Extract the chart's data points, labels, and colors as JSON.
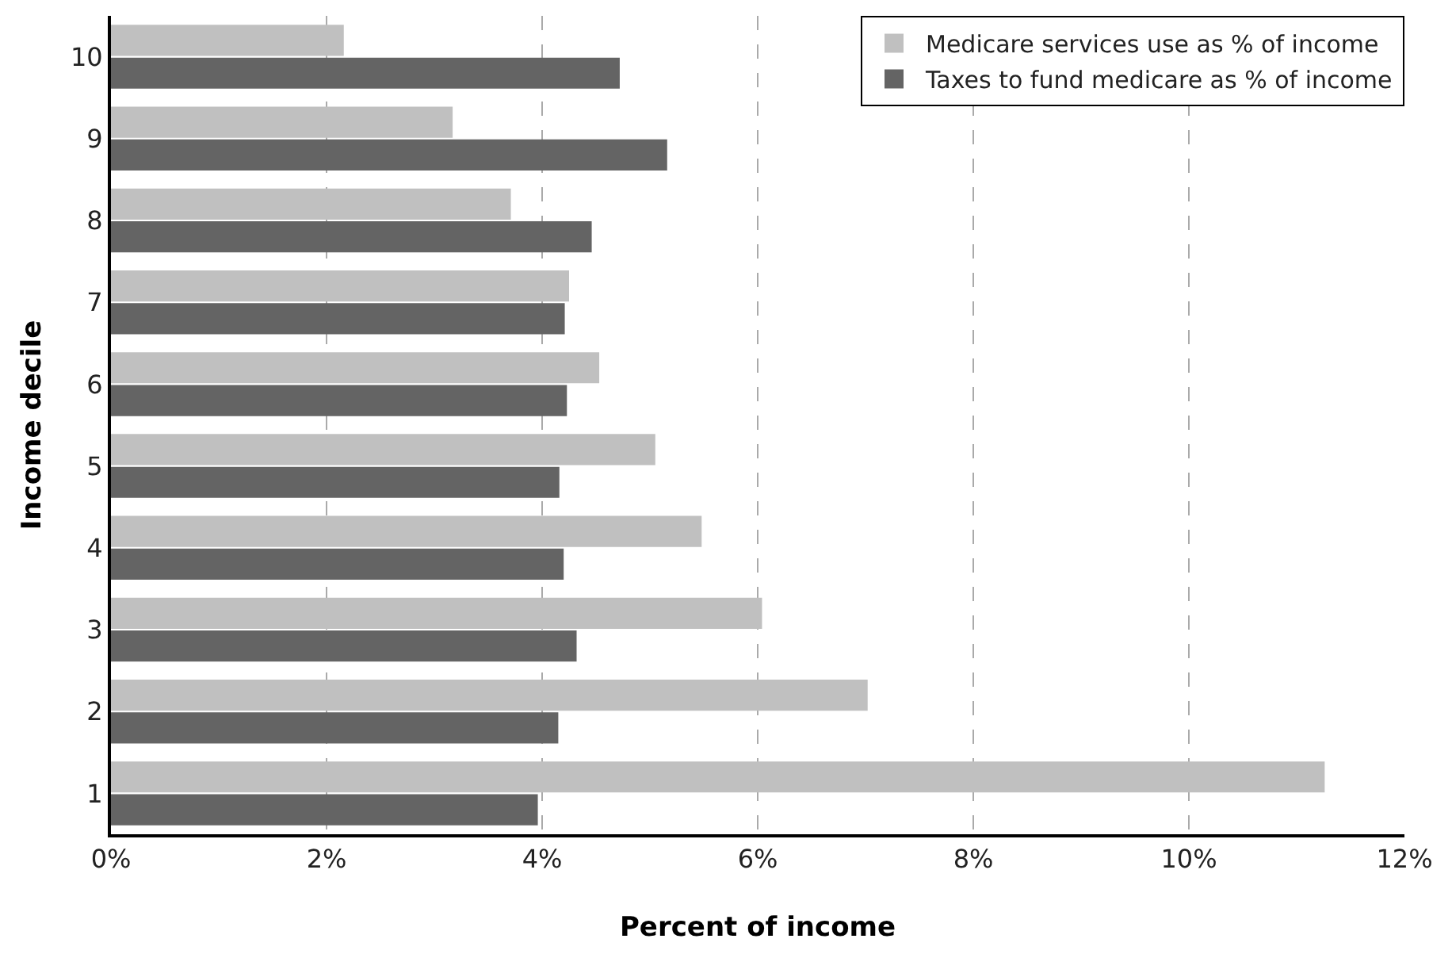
{
  "chart_data": {
    "type": "bar",
    "orientation": "horizontal",
    "xlabel": "Percent of income",
    "ylabel": "Income decile",
    "categories": [
      "10",
      "9",
      "8",
      "7",
      "6",
      "5",
      "4",
      "3",
      "2",
      "1"
    ],
    "series": [
      {
        "name": "Medicare services use as % of income",
        "color": "#c0c0c0",
        "values": [
          2.16,
          3.17,
          3.71,
          4.25,
          4.53,
          5.05,
          5.48,
          6.04,
          7.02,
          11.26
        ]
      },
      {
        "name": "Taxes to fund medicare as % of income",
        "color": "#646464",
        "values": [
          4.72,
          5.16,
          4.46,
          4.21,
          4.23,
          4.16,
          4.2,
          4.32,
          4.15,
          3.96
        ]
      }
    ],
    "xlim": [
      0,
      12
    ],
    "xticks": [
      {
        "value": 0,
        "label": "0%"
      },
      {
        "value": 2,
        "label": "2%"
      },
      {
        "value": 4,
        "label": "4%"
      },
      {
        "value": 6,
        "label": "6%"
      },
      {
        "value": 8,
        "label": "8%"
      },
      {
        "value": 10,
        "label": "10%"
      },
      {
        "value": 12,
        "label": "12%"
      }
    ],
    "grid": "x",
    "legend": "top right"
  }
}
